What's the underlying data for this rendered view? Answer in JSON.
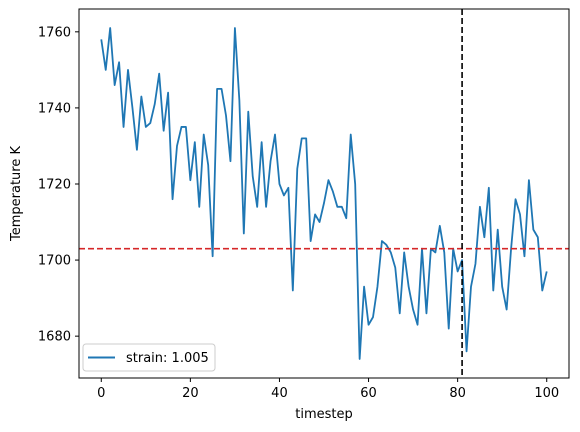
{
  "chart_data": {
    "type": "line",
    "title": "",
    "xlabel": "timestep",
    "ylabel": "Temperature K",
    "xlim": [
      -5,
      105
    ],
    "ylim": [
      1669,
      1766
    ],
    "xticks": [
      0,
      20,
      40,
      60,
      80,
      100
    ],
    "yticks": [
      1680,
      1700,
      1720,
      1740,
      1760
    ],
    "grid": false,
    "legend_position": "lower-left",
    "series": [
      {
        "name": "strain: 1.005",
        "color": "#1f77b4",
        "x": [
          0,
          1,
          2,
          3,
          4,
          5,
          6,
          7,
          8,
          9,
          10,
          11,
          12,
          13,
          14,
          15,
          16,
          17,
          18,
          19,
          20,
          21,
          22,
          23,
          24,
          25,
          26,
          27,
          28,
          29,
          30,
          31,
          32,
          33,
          34,
          35,
          36,
          37,
          38,
          39,
          40,
          41,
          42,
          43,
          44,
          45,
          46,
          47,
          48,
          49,
          50,
          51,
          52,
          53,
          54,
          55,
          56,
          57,
          58,
          59,
          60,
          61,
          62,
          63,
          64,
          65,
          66,
          67,
          68,
          69,
          70,
          71,
          72,
          73,
          74,
          75,
          76,
          77,
          78,
          79,
          80,
          81,
          82,
          83,
          84,
          85,
          86,
          87,
          88,
          89,
          90,
          91,
          92,
          93,
          94,
          95,
          96,
          97,
          98,
          99,
          100
        ],
        "y": [
          1758,
          1750,
          1761,
          1746,
          1752,
          1735,
          1750,
          1740,
          1729,
          1743,
          1735,
          1736,
          1741,
          1749,
          1734,
          1744,
          1716,
          1730,
          1735,
          1735,
          1721,
          1731,
          1714,
          1733,
          1725,
          1701,
          1745,
          1745,
          1738,
          1726,
          1761,
          1742,
          1707,
          1739,
          1722,
          1714,
          1731,
          1714,
          1726,
          1733,
          1720,
          1717,
          1719,
          1692,
          1724,
          1732,
          1732,
          1705,
          1712,
          1710,
          1715,
          1721,
          1718,
          1714,
          1714,
          1711,
          1733,
          1720,
          1674,
          1693,
          1683,
          1685,
          1693,
          1705,
          1704,
          1702,
          1698,
          1686,
          1702,
          1693,
          1687,
          1683,
          1703,
          1686,
          1703,
          1702,
          1709,
          1702,
          1682,
          1703,
          1697,
          1700,
          1676,
          1693,
          1699,
          1714,
          1706,
          1719,
          1692,
          1708,
          1693,
          1687,
          1703,
          1716,
          1712,
          1701,
          1721,
          1708,
          1706,
          1692,
          1697
        ]
      }
    ],
    "reference_lines": [
      {
        "orientation": "horizontal",
        "value": 1703,
        "color": "#d62728",
        "style": "dashed"
      },
      {
        "orientation": "vertical",
        "value": 81,
        "color": "#000000",
        "style": "dashed"
      }
    ]
  }
}
